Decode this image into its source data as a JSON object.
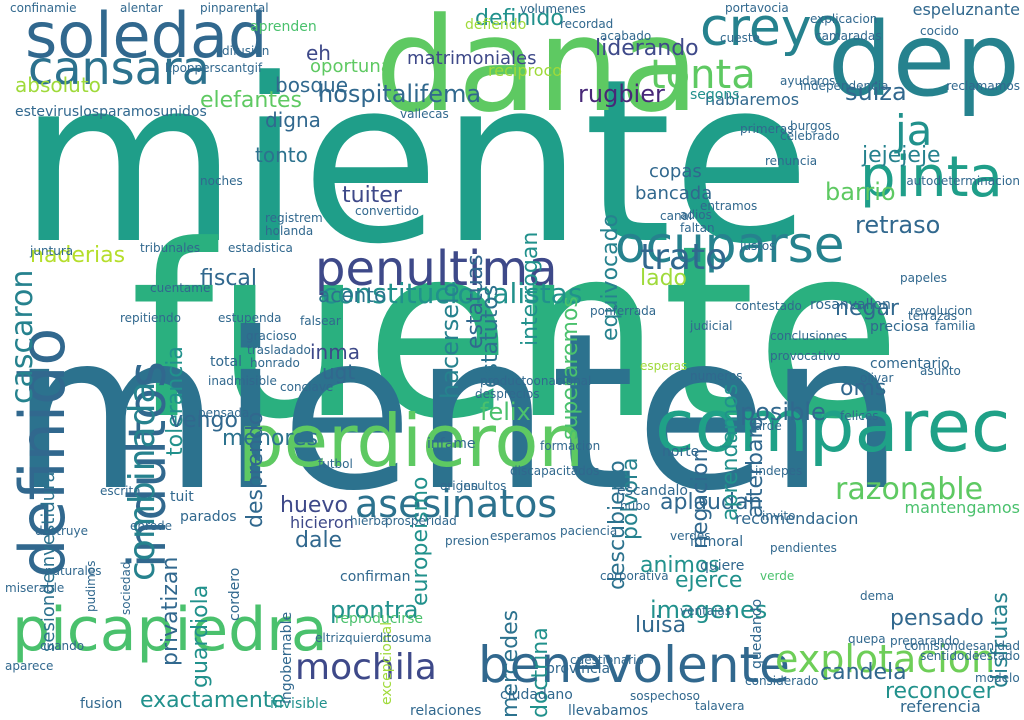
{
  "words": [
    {
      "text": "miente",
      "color": "#1f9e89"
    },
    {
      "text": "fuente",
      "color": "#2ab07f"
    },
    {
      "text": "mienten",
      "color": "#2c728e"
    },
    {
      "text": "dana",
      "color": "#5ec962"
    },
    {
      "text": "dep",
      "color": "#26828e"
    },
    {
      "text": "soledad",
      "color": "#31688e"
    },
    {
      "text": "cansara",
      "color": "#2c728e"
    },
    {
      "text": "creyo",
      "color": "#26828e"
    },
    {
      "text": "perdieron",
      "color": "#5ec962"
    },
    {
      "text": "comparec",
      "color": "#1fa187"
    },
    {
      "text": "picapiedra",
      "color": "#4ac16d"
    },
    {
      "text": "benevolente",
      "color": "#31688e"
    },
    {
      "text": "penultima",
      "color": "#3e4989"
    },
    {
      "text": "asesinatos",
      "color": "#2c728e"
    },
    {
      "text": "ocuparse",
      "color": "#26828e"
    },
    {
      "text": "definido",
      "color": "#31688e"
    },
    {
      "text": "indultos",
      "color": "#31688e"
    },
    {
      "text": "pinta",
      "color": "#1f9e89"
    },
    {
      "text": "tonta",
      "color": "#5ec962"
    },
    {
      "text": "mochila",
      "color": "#3e4989"
    },
    {
      "text": "explotacion",
      "color": "#6ece58"
    },
    {
      "text": "combinada",
      "color": "#26828e"
    },
    {
      "text": "constitucionalistas",
      "color": "#21918c"
    },
    {
      "text": "hospitalifema",
      "color": "#31688e"
    },
    {
      "text": "rugbier",
      "color": "#482878"
    },
    {
      "text": "razonable",
      "color": "#5ec962"
    },
    {
      "text": "prontra",
      "color": "#21918c"
    },
    {
      "text": "trato",
      "color": "#31688e"
    },
    {
      "text": "absoluto",
      "color": "#9fda3a"
    },
    {
      "text": "elefantes",
      "color": "#5ec962"
    },
    {
      "text": "definido",
      "color": "#21918c"
    },
    {
      "text": "liderando",
      "color": "#3e4989"
    },
    {
      "text": "ja",
      "color": "#21918c"
    },
    {
      "text": "bosque",
      "color": "#31688e"
    },
    {
      "text": "oportuna",
      "color": "#5ec962"
    },
    {
      "text": "eh",
      "color": "#3e4989"
    },
    {
      "text": "suiza",
      "color": "#31688e"
    },
    {
      "text": "jejejeje",
      "color": "#26828e"
    },
    {
      "text": "retraso",
      "color": "#31688e"
    },
    {
      "text": "barrio",
      "color": "#5ec962"
    },
    {
      "text": "digna",
      "color": "#31688e"
    },
    {
      "text": "tonto",
      "color": "#2c728e"
    },
    {
      "text": "cascaron",
      "color": "#26828e"
    },
    {
      "text": "tolerancia",
      "color": "#21918c"
    },
    {
      "text": "estatutos",
      "color": "#2c728e"
    },
    {
      "text": "superaremos",
      "color": "#4ac16d"
    },
    {
      "text": "tuiter",
      "color": "#3e4989"
    },
    {
      "text": "hacerselo",
      "color": "#26828e"
    },
    {
      "text": "naderias",
      "color": "#b5de2b"
    },
    {
      "text": "fiscal",
      "color": "#31688e"
    },
    {
      "text": "inma",
      "color": "#3e4989"
    },
    {
      "text": "ugt",
      "color": "#31688e"
    },
    {
      "text": "acento",
      "color": "#2c728e"
    },
    {
      "text": "felix",
      "color": "#4ac16d"
    },
    {
      "text": "posible",
      "color": "#31688e"
    },
    {
      "text": "negar",
      "color": "#31688e"
    },
    {
      "text": "oms",
      "color": "#31688e"
    },
    {
      "text": "lado",
      "color": "#9fda3a"
    },
    {
      "text": "vengo",
      "color": "#31688e"
    },
    {
      "text": "huevo",
      "color": "#3e4989"
    },
    {
      "text": "aplaudan",
      "color": "#31688e"
    },
    {
      "text": "dale",
      "color": "#31688e"
    },
    {
      "text": "animos",
      "color": "#21918c"
    },
    {
      "text": "imagenes",
      "color": "#21918c"
    },
    {
      "text": "luisa",
      "color": "#31688e"
    },
    {
      "text": "candela",
      "color": "#31688e"
    },
    {
      "text": "exactamente",
      "color": "#21918c"
    },
    {
      "text": "menores",
      "color": "#2c728e"
    },
    {
      "text": "reconocer",
      "color": "#21918c"
    },
    {
      "text": "disfrutas",
      "color": "#26828e"
    },
    {
      "text": "pensado",
      "color": "#31688e"
    },
    {
      "text": "referencia",
      "color": "#31688e"
    },
    {
      "text": "ejerce",
      "color": "#21918c"
    },
    {
      "text": "guardiola",
      "color": "#21918c"
    },
    {
      "text": "doctrina",
      "color": "#21918c"
    },
    {
      "text": "mercedes",
      "color": "#2c728e"
    },
    {
      "text": "polvora",
      "color": "#26828e"
    },
    {
      "text": "negacion",
      "color": "#31688e"
    },
    {
      "text": "descubierto",
      "color": "#2c728e"
    },
    {
      "text": "europeismo",
      "color": "#21918c"
    },
    {
      "text": "desprendo",
      "color": "#31688e"
    },
    {
      "text": "privatizan",
      "color": "#31688e"
    },
    {
      "text": "aprendamos",
      "color": "#21918c"
    },
    {
      "text": "afterbaro",
      "color": "#31688e"
    },
    {
      "text": "equivocado",
      "color": "#26828e"
    },
    {
      "text": "estatuas",
      "color": "#31688e"
    },
    {
      "text": "interrogan",
      "color": "#21918c"
    },
    {
      "text": "copas",
      "color": "#31688e"
    },
    {
      "text": "bancada",
      "color": "#31688e"
    },
    {
      "text": "matrimoniales",
      "color": "#3e4989"
    },
    {
      "text": "sesiondeinvestidura",
      "color": "#2c728e"
    },
    {
      "text": "recomendacion",
      "color": "#31688e"
    },
    {
      "text": "mantengamos",
      "color": "#4ac16d"
    },
    {
      "text": "llevabamos",
      "color": "#31688e"
    },
    {
      "text": "provincia",
      "color": "#31688e"
    },
    {
      "text": "ciudadano",
      "color": "#31688e"
    },
    {
      "text": "fusion",
      "color": "#31688e"
    },
    {
      "text": "invisible",
      "color": "#21918c"
    },
    {
      "text": "relaciones",
      "color": "#31688e"
    },
    {
      "text": "quiere",
      "color": "#31688e"
    },
    {
      "text": "parados",
      "color": "#31688e"
    },
    {
      "text": "hicieron",
      "color": "#3e4989"
    },
    {
      "text": "cordero",
      "color": "#31688e"
    },
    {
      "text": "quedando",
      "color": "#31688e"
    },
    {
      "text": "total",
      "color": "#31688e"
    },
    {
      "text": "tuit",
      "color": "#31688e"
    },
    {
      "text": "hablaremos",
      "color": "#31688e"
    },
    {
      "text": "espeluznante",
      "color": "#31688e"
    },
    {
      "text": "segons",
      "color": "#21918c"
    },
    {
      "text": "aprenden",
      "color": "#4ac16d"
    },
    {
      "text": "defiendo",
      "color": "#9fda3a"
    },
    {
      "text": "reciproco",
      "color": "#9fda3a"
    },
    {
      "text": "estevirusIosparamosunidos",
      "color": "#31688e"
    },
    {
      "text": "rosanvallon",
      "color": "#31688e"
    },
    {
      "text": "preciosa",
      "color": "#31688e"
    },
    {
      "text": "comentario",
      "color": "#31688e"
    },
    {
      "text": "conclave",
      "color": "#31688e"
    },
    {
      "text": "olivar",
      "color": "#31688e"
    },
    {
      "text": "infame",
      "color": "#31688e"
    },
    {
      "text": "norte",
      "color": "#31688e"
    },
    {
      "text": "escandalo",
      "color": "#31688e"
    },
    {
      "text": "hubo",
      "color": "#31688e"
    },
    {
      "text": "inmoral",
      "color": "#31688e"
    },
    {
      "text": "confirman",
      "color": "#31688e"
    },
    {
      "text": "ventajas",
      "color": "#31688e"
    },
    {
      "text": "reproducirse",
      "color": "#4ac16d"
    },
    {
      "text": "excepcional",
      "color": "#9fda3a"
    },
    {
      "text": "eltrizquierditosuma",
      "color": "#31688e"
    },
    {
      "text": "ingobernable",
      "color": "#31688e"
    },
    {
      "text": "enrede",
      "color": "#31688e"
    },
    {
      "text": "verde",
      "color": "#4ac16d"
    },
    {
      "text": "sociedad",
      "color": "#31688e"
    },
    {
      "text": "entramos",
      "color": "#31688e"
    },
    {
      "text": "esperas",
      "color": "#9fda3a"
    },
    {
      "text": "numeros",
      "color": "#31688e"
    },
    {
      "text": "tarde",
      "color": "#31688e"
    },
    {
      "text": "juntura",
      "color": "#31688e"
    },
    {
      "text": "tribunales",
      "color": "#31688e"
    },
    {
      "text": "estadistica",
      "color": "#31688e"
    },
    {
      "text": "judicial",
      "color": "#31688e"
    },
    {
      "text": "adios",
      "color": "#31688e"
    },
    {
      "text": "faltan",
      "color": "#31688e"
    },
    {
      "text": "canal",
      "color": "#31688e"
    },
    {
      "text": "justos",
      "color": "#31688e"
    },
    {
      "text": "ayudaros",
      "color": "#31688e"
    },
    {
      "text": "burgos",
      "color": "#31688e"
    },
    {
      "text": "renuncia",
      "color": "#31688e"
    },
    {
      "text": "convertido",
      "color": "#31688e"
    },
    {
      "text": "registrem",
      "color": "#31688e"
    },
    {
      "text": "holanda",
      "color": "#31688e"
    },
    {
      "text": "portavocia",
      "color": "#31688e"
    },
    {
      "text": "acabado",
      "color": "#31688e"
    },
    {
      "text": "recordad",
      "color": "#31688e"
    },
    {
      "text": "volumenes",
      "color": "#31688e"
    },
    {
      "text": "alentar",
      "color": "#31688e"
    },
    {
      "text": "pinparental",
      "color": "#31688e"
    },
    {
      "text": "confinamie",
      "color": "#31688e"
    },
    {
      "text": "kpopperscantgif",
      "color": "#31688e"
    },
    {
      "text": "noches",
      "color": "#31688e"
    },
    {
      "text": "difusion",
      "color": "#31688e"
    },
    {
      "text": "vallecas",
      "color": "#31688e"
    },
    {
      "text": "primeras",
      "color": "#31688e"
    },
    {
      "text": "independencia",
      "color": "#31688e"
    },
    {
      "text": "celebrado",
      "color": "#31688e"
    },
    {
      "text": "explicacion",
      "color": "#31688e"
    },
    {
      "text": "camaradas",
      "color": "#31688e"
    },
    {
      "text": "cocido",
      "color": "#31688e"
    },
    {
      "text": "cueste",
      "color": "#31688e"
    },
    {
      "text": "reclamamos",
      "color": "#31688e"
    },
    {
      "text": "autodeterminacion",
      "color": "#31688e"
    },
    {
      "text": "felices",
      "color": "#31688e"
    },
    {
      "text": "indepes",
      "color": "#31688e"
    },
    {
      "text": "familia",
      "color": "#31688e"
    },
    {
      "text": "terrazas",
      "color": "#31688e"
    },
    {
      "text": "asunto",
      "color": "#31688e"
    },
    {
      "text": "provocativo",
      "color": "#31688e"
    },
    {
      "text": "papeles",
      "color": "#31688e"
    },
    {
      "text": "revolucion",
      "color": "#31688e"
    },
    {
      "text": "conclusiones",
      "color": "#31688e"
    },
    {
      "text": "contestado",
      "color": "#31688e"
    },
    {
      "text": "ponferrada",
      "color": "#31688e"
    },
    {
      "text": "cuestionario",
      "color": "#31688e"
    },
    {
      "text": "sospechoso",
      "color": "#31688e"
    },
    {
      "text": "talavera",
      "color": "#31688e"
    },
    {
      "text": "modelo",
      "color": "#31688e"
    },
    {
      "text": "sentidodeestado",
      "color": "#31688e"
    },
    {
      "text": "comisiondesanidad",
      "color": "#31688e"
    },
    {
      "text": "preparando",
      "color": "#31688e"
    },
    {
      "text": "considerado",
      "color": "#31688e"
    },
    {
      "text": "prosperidad",
      "color": "#31688e"
    },
    {
      "text": "verdes",
      "color": "#31688e"
    },
    {
      "text": "paciencia",
      "color": "#31688e"
    },
    {
      "text": "insultos",
      "color": "#31688e"
    },
    {
      "text": "origen",
      "color": "#31688e"
    },
    {
      "text": "formacion",
      "color": "#31688e"
    },
    {
      "text": "productoonacional",
      "color": "#31688e"
    },
    {
      "text": "desprecios",
      "color": "#31688e"
    },
    {
      "text": "gracioso",
      "color": "#31688e"
    },
    {
      "text": "trasladado",
      "color": "#31688e"
    },
    {
      "text": "honrado",
      "color": "#31688e"
    },
    {
      "text": "pensada",
      "color": "#31688e"
    },
    {
      "text": "inadmisible",
      "color": "#31688e"
    },
    {
      "text": "repitiendo",
      "color": "#31688e"
    },
    {
      "text": "cuentame",
      "color": "#31688e"
    },
    {
      "text": "estupenda",
      "color": "#31688e"
    },
    {
      "text": "falsear",
      "color": "#31688e"
    },
    {
      "text": "futbol",
      "color": "#31688e"
    },
    {
      "text": "discapacitados",
      "color": "#31688e"
    },
    {
      "text": "presion",
      "color": "#31688e"
    },
    {
      "text": "escrita",
      "color": "#31688e"
    },
    {
      "text": "destruye",
      "color": "#31688e"
    },
    {
      "text": "miserable",
      "color": "#31688e"
    },
    {
      "text": "naturales",
      "color": "#31688e"
    },
    {
      "text": "aparece",
      "color": "#31688e"
    },
    {
      "text": "cuando",
      "color": "#31688e"
    },
    {
      "text": "pudimos",
      "color": "#31688e"
    },
    {
      "text": "corporativa",
      "color": "#31688e"
    },
    {
      "text": "hierba",
      "color": "#31688e"
    },
    {
      "text": "quepa",
      "color": "#31688e"
    },
    {
      "text": "invito",
      "color": "#31688e"
    },
    {
      "text": "dema",
      "color": "#31688e"
    },
    {
      "text": "pendientes",
      "color": "#31688e"
    },
    {
      "text": "esperamos",
      "color": "#31688e"
    },
    {
      "text": "precisamente",
      "color": "#31688e"
    },
    {
      "text": "amp",
      "color": "#31688e"
    },
    {
      "text": "boe",
      "color": "#31688e"
    },
    {
      "text": "dano",
      "color": "#31688e"
    },
    {
      "text": "guin",
      "color": "#31688e"
    },
    {
      "text": "block",
      "color": "#31688e"
    },
    {
      "text": "dolera",
      "color": "#31688e"
    }
  ]
}
